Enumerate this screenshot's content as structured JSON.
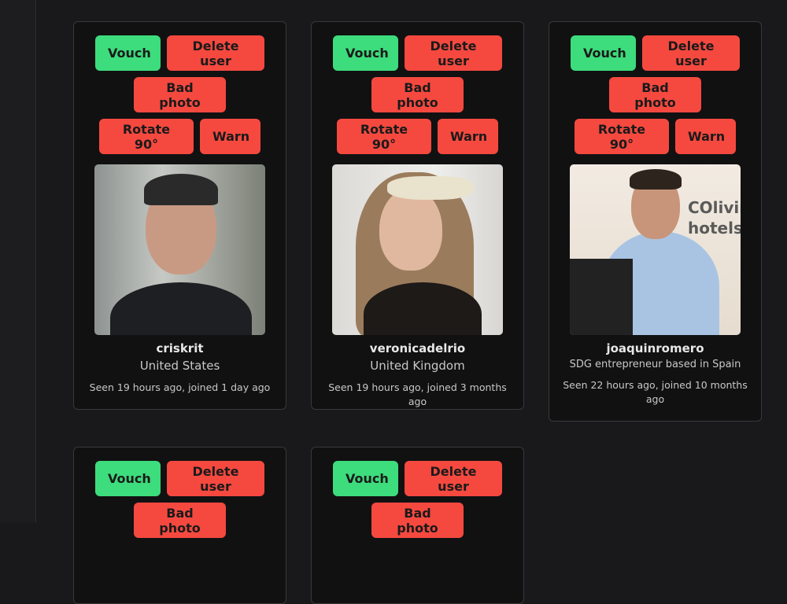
{
  "buttons": {
    "vouch": "Vouch",
    "delete": "Delete user",
    "bad_photo": "Bad photo",
    "rotate": "Rotate 90°",
    "warn": "Warn"
  },
  "colors": {
    "vouch": "#3ddc7c",
    "danger": "#f5493f",
    "card_bg": "#111112",
    "page_bg": "#19191b"
  },
  "users": [
    {
      "username": "criskrit",
      "bio": "United States",
      "seen": "Seen 19 hours ago, joined 1 day ago"
    },
    {
      "username": "veronicadelrio",
      "bio": "United Kingdom",
      "seen": "Seen 19 hours ago, joined 3 months ago"
    },
    {
      "username": "joaquinromero",
      "bio": "SDG entrepreneur based in Spain",
      "seen": "Seen 22 hours ago, joined 10 months ago",
      "photo_text": "COliving hotels"
    },
    {
      "username": "",
      "bio": "",
      "seen": ""
    },
    {
      "username": "",
      "bio": "",
      "seen": ""
    }
  ]
}
